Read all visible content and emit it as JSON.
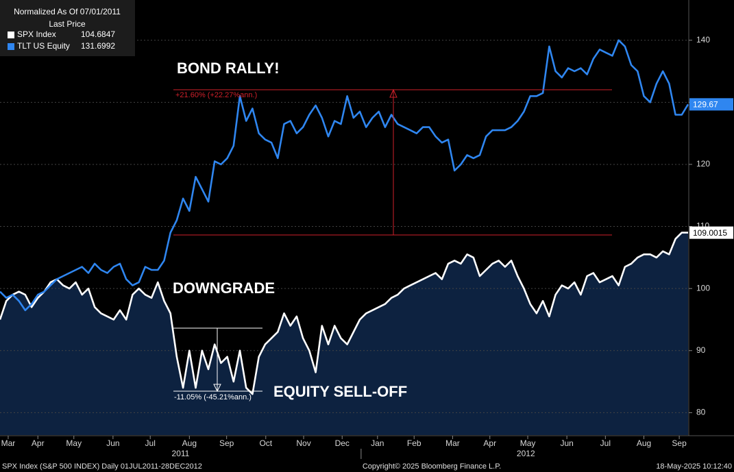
{
  "chart_data": {
    "type": "line",
    "legend": {
      "title": "Normalized As Of 07/01/2011",
      "subtitle": "Last Price"
    },
    "annotations": [
      "BOND RALLY!",
      "DOWNGRADE",
      "EQUITY SELL-OFF",
      "+21.60% (+22.27%ann.)",
      "-11.05% (-45.21%ann.)"
    ],
    "footer": {
      "left": "SPX Index (S&P 500 INDEX)  Daily 01JUL2011-28DEC2012",
      "center": "Copyright© 2025 Bloomberg Finance L.P.",
      "right": "18-May-2025 10:12:40"
    },
    "x": [
      0,
      1,
      2,
      3,
      4,
      5,
      6,
      7,
      8,
      9,
      10,
      11,
      12,
      13,
      14,
      15,
      16,
      17,
      18,
      19,
      20,
      21,
      22,
      23,
      24,
      25,
      26,
      27,
      28,
      29,
      30,
      31,
      32,
      33,
      34,
      35,
      36,
      37,
      38,
      39,
      40,
      41,
      42,
      43,
      44,
      45,
      46,
      47,
      48,
      49,
      50,
      51,
      52,
      53,
      54,
      55,
      56,
      57,
      58,
      59,
      60,
      61,
      62,
      63,
      64,
      65,
      66,
      67,
      68,
      69,
      70,
      71,
      72,
      73,
      74,
      75,
      76,
      77,
      78,
      79,
      80,
      81,
      82,
      83,
      84,
      85,
      86,
      87,
      88,
      89,
      90,
      91,
      92,
      93,
      94,
      95,
      96,
      97,
      98,
      99,
      100,
      101,
      102,
      103,
      104,
      105,
      106,
      107,
      108,
      109
    ],
    "xlim": [
      0,
      109
    ],
    "xticks": [
      {
        "value": 1.3,
        "label": "Mar"
      },
      {
        "value": 6,
        "label": "Apr"
      },
      {
        "value": 11.7,
        "label": "May"
      },
      {
        "value": 17.9,
        "label": "Jun"
      },
      {
        "value": 23.8,
        "label": "Jul"
      },
      {
        "value": 30,
        "label": "Aug"
      },
      {
        "value": 35.9,
        "label": "Sep"
      },
      {
        "value": 42.1,
        "label": "Oct"
      },
      {
        "value": 48.1,
        "label": "Nov"
      },
      {
        "value": 54.2,
        "label": "Dec"
      },
      {
        "value": 59.8,
        "label": "Jan"
      },
      {
        "value": 65.6,
        "label": "Feb"
      },
      {
        "value": 71.7,
        "label": "Mar"
      },
      {
        "value": 77.6,
        "label": "Apr"
      },
      {
        "value": 83.6,
        "label": "May"
      },
      {
        "value": 89.8,
        "label": "Jun"
      },
      {
        "value": 95.9,
        "label": "Jul"
      },
      {
        "value": 102,
        "label": "Aug"
      },
      {
        "value": 107.6,
        "label": "Sep"
      }
    ],
    "years": [
      {
        "value": 28.6,
        "label": "2011"
      },
      {
        "value": 83.3,
        "label": "2012"
      }
    ],
    "year_divider": 57.2,
    "ylim": [
      76.4,
      145.6
    ],
    "yticks": [
      80,
      90,
      100,
      110,
      120,
      130,
      140
    ],
    "grid": true,
    "series": [
      {
        "name": "SPX Index",
        "color": "#ffffff",
        "area_color": "#0d2240",
        "legend_value": "104.6847",
        "last_label": "109.0015",
        "values": [
          95,
          98,
          99,
          99.5,
          99,
          97,
          98.5,
          99.5,
          101,
          101.5,
          100.5,
          100,
          101,
          99,
          100,
          97,
          96,
          95.5,
          95,
          96.5,
          95,
          99,
          100,
          99,
          98.5,
          101,
          98,
          96,
          89,
          84,
          90,
          84,
          90,
          87,
          91,
          88,
          89,
          85,
          90,
          84,
          83,
          89,
          91,
          92,
          93,
          96,
          94,
          95.5,
          92,
          90,
          86.5,
          94,
          91,
          94,
          92,
          91,
          93,
          95,
          96,
          96.5,
          97,
          97.5,
          98.5,
          99,
          100,
          100.5,
          101,
          101.5,
          102,
          102.5,
          101.5,
          104,
          104.5,
          104,
          105.5,
          105,
          102,
          103,
          104,
          104.5,
          103.5,
          104.5,
          102,
          100,
          97.5,
          96,
          98,
          95.5,
          99,
          100.5,
          100,
          101,
          99,
          102,
          102.5,
          101,
          101.5,
          102,
          100.5,
          103.5,
          104,
          105,
          105.5,
          105.5,
          105,
          106,
          105.5,
          108,
          109,
          109
        ]
      },
      {
        "name": "TLT US Equity",
        "color": "#2f86f0",
        "legend_value": "131.6992",
        "last_label": "129.67",
        "values": [
          99.5,
          98.5,
          99,
          98,
          96.5,
          97.5,
          99,
          99.5,
          100.5,
          101.5,
          102,
          102.5,
          103,
          103.5,
          102.5,
          104,
          103,
          102.5,
          103.5,
          104,
          101.5,
          100.5,
          101,
          103.5,
          103,
          103,
          104.5,
          109,
          111,
          114.5,
          112.5,
          118,
          116,
          114,
          120.5,
          120,
          121,
          123,
          131,
          127,
          129,
          125,
          124,
          123.5,
          121,
          126.5,
          127,
          125,
          126,
          128,
          129.5,
          127.5,
          124.5,
          127,
          126.5,
          131,
          127.5,
          128.5,
          126,
          127.5,
          128.5,
          126,
          128,
          126.5,
          126,
          125.5,
          125,
          126,
          126,
          124.5,
          123.5,
          124,
          119,
          120,
          121.5,
          121,
          121.5,
          124.5,
          125.5,
          125.5,
          125.5,
          126,
          127,
          128.5,
          131,
          131,
          131.5,
          139,
          135,
          134,
          135.5,
          135,
          135.5,
          134.5,
          137,
          138.5,
          138,
          137.5,
          140,
          139,
          136,
          135,
          131,
          130,
          133,
          135,
          133,
          128,
          128,
          129.67
        ]
      }
    ]
  }
}
